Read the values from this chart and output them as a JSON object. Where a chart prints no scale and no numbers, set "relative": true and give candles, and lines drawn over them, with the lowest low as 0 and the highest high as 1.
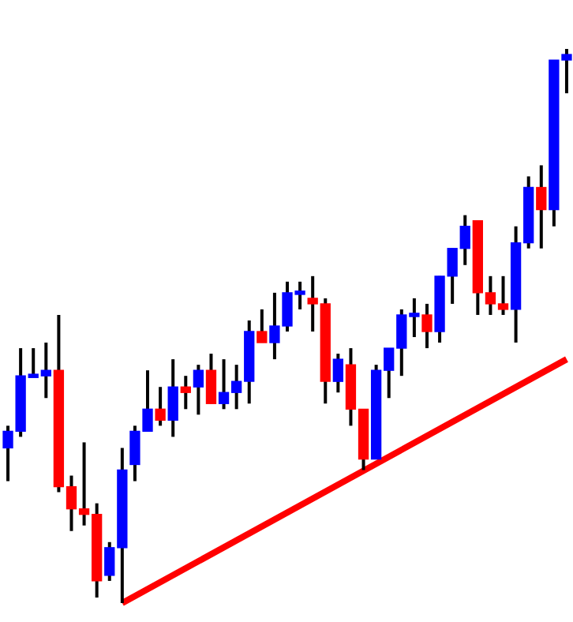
{
  "chart_data": {
    "type": "candlestick",
    "relative": true,
    "categories": [
      null,
      null,
      null,
      null,
      null,
      null,
      null,
      null,
      null,
      null,
      null,
      null,
      null,
      null,
      null,
      null,
      null,
      null,
      null,
      null,
      null,
      null,
      null,
      null,
      null,
      null,
      null,
      null,
      null,
      null,
      null,
      null,
      null,
      null,
      null,
      null,
      null,
      null,
      null,
      null,
      null,
      null,
      null,
      null,
      null
    ],
    "ohlc": [
      [
        0.28,
        0.32,
        0.22,
        0.31
      ],
      [
        0.31,
        0.46,
        0.3,
        0.41
      ],
      [
        0.41,
        0.46,
        0.41,
        0.41
      ],
      [
        0.41,
        0.47,
        0.37,
        0.42
      ],
      [
        0.42,
        0.52,
        0.2,
        0.21
      ],
      [
        0.21,
        0.23,
        0.13,
        0.17
      ],
      [
        0.17,
        0.29,
        0.14,
        0.16
      ],
      [
        0.16,
        0.18,
        0.01,
        0.04
      ],
      [
        0.05,
        0.11,
        0.04,
        0.1
      ],
      [
        0.1,
        0.28,
        0,
        0.24
      ],
      [
        0.25,
        0.32,
        0.22,
        0.31
      ],
      [
        0.31,
        0.42,
        0.31,
        0.35
      ],
      [
        0.35,
        0.39,
        0.32,
        0.33
      ],
      [
        0.33,
        0.44,
        0.3,
        0.39
      ],
      [
        0.39,
        0.41,
        0.35,
        0.38
      ],
      [
        0.39,
        0.43,
        0.34,
        0.42
      ],
      [
        0.42,
        0.45,
        0.36,
        0.36
      ],
      [
        0.36,
        0.44,
        0.35,
        0.38
      ],
      [
        0.38,
        0.43,
        0.35,
        0.4
      ],
      [
        0.4,
        0.51,
        0.36,
        0.49
      ],
      [
        0.49,
        0.53,
        0.47,
        0.47
      ],
      [
        0.47,
        0.56,
        0.44,
        0.5
      ],
      [
        0.5,
        0.58,
        0.49,
        0.56
      ],
      [
        0.56,
        0.58,
        0.53,
        0.56
      ],
      [
        0.55,
        0.59,
        0.49,
        0.54
      ],
      [
        0.54,
        0.55,
        0.36,
        0.4
      ],
      [
        0.4,
        0.45,
        0.38,
        0.44
      ],
      [
        0.43,
        0.46,
        0.32,
        0.35
      ],
      [
        0.35,
        0.35,
        0.24,
        0.26
      ],
      [
        0.26,
        0.43,
        0.26,
        0.42
      ],
      [
        0.42,
        0.46,
        0.37,
        0.46
      ],
      [
        0.46,
        0.53,
        0.41,
        0.52
      ],
      [
        0.52,
        0.55,
        0.48,
        0.52
      ],
      [
        0.52,
        0.54,
        0.46,
        0.49
      ],
      [
        0.49,
        0.59,
        0.47,
        0.59
      ],
      [
        0.59,
        0.64,
        0.54,
        0.64
      ],
      [
        0.64,
        0.7,
        0.61,
        0.68
      ],
      [
        0.69,
        0.69,
        0.52,
        0.56
      ],
      [
        0.56,
        0.59,
        0.52,
        0.54
      ],
      [
        0.54,
        0.59,
        0.52,
        0.53
      ],
      [
        0.53,
        0.68,
        0.47,
        0.65
      ],
      [
        0.65,
        0.77,
        0.64,
        0.75
      ],
      [
        0.75,
        0.79,
        0.64,
        0.71
      ],
      [
        0.71,
        0.98,
        0.68,
        0.98
      ],
      [
        0.98,
        1,
        0.92,
        0.99
      ]
    ],
    "colors": [
      "#0000ff",
      "#0000ff",
      "#0000ff",
      "#0000ff",
      "#ff0000",
      "#ff0000",
      "#ff0000",
      "#ff0000",
      "#0000ff",
      "#0000ff",
      "#0000ff",
      "#0000ff",
      "#ff0000",
      "#0000ff",
      "#ff0000",
      "#0000ff",
      "#ff0000",
      "#0000ff",
      "#0000ff",
      "#0000ff",
      "#ff0000",
      "#0000ff",
      "#0000ff",
      "#0000ff",
      "#ff0000",
      "#ff0000",
      "#0000ff",
      "#ff0000",
      "#ff0000",
      "#0000ff",
      "#0000ff",
      "#0000ff",
      "#0000ff",
      "#ff0000",
      "#0000ff",
      "#0000ff",
      "#0000ff",
      "#ff0000",
      "#ff0000",
      "#ff0000",
      "#0000ff",
      "#0000ff",
      "#ff0000",
      "#0000ff",
      "#0000ff"
    ],
    "series": [
      {
        "type": "line",
        "color": "#ff0000",
        "values": [
          null,
          null,
          null,
          null,
          null,
          null,
          null,
          null,
          null,
          0,
          null,
          null,
          null,
          null,
          null,
          null,
          null,
          null,
          null,
          null,
          null,
          null,
          null,
          null,
          null,
          null,
          null,
          null,
          null,
          null,
          null,
          null,
          null,
          null,
          null,
          null,
          null,
          null,
          null,
          null,
          null,
          null,
          null,
          null,
          0.44
        ]
      }
    ]
  }
}
